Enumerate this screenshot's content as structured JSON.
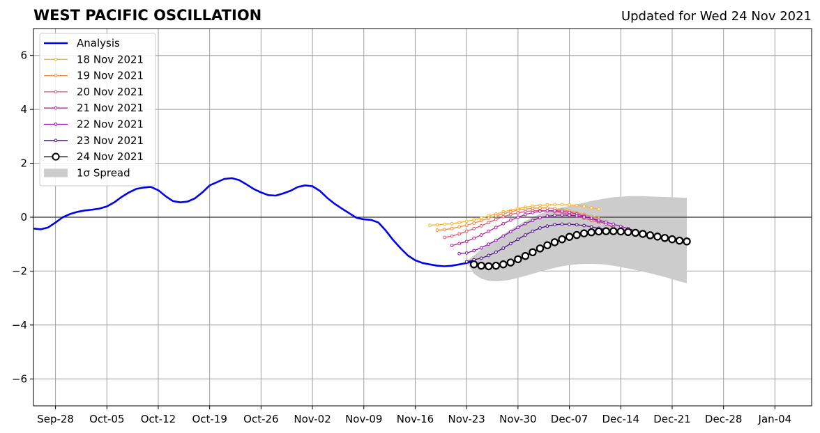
{
  "chart_data": {
    "type": "line",
    "title": "WEST PACIFIC OSCILLATION",
    "subtitle": "Updated for Wed 24 Nov 2021",
    "xlabel": "",
    "ylabel": "",
    "ylim": [
      -7,
      7
    ],
    "yticks": [
      "−6",
      "−4",
      "−2",
      "0",
      "2",
      "4",
      "6"
    ],
    "yticks_values": [
      -6,
      -4,
      -2,
      0,
      2,
      4,
      6
    ],
    "xticks": [
      "Sep-28",
      "Oct-05",
      "Oct-12",
      "Oct-19",
      "Oct-26",
      "Nov-02",
      "Nov-09",
      "Nov-16",
      "Nov-23",
      "Nov-30",
      "Dec-07",
      "Dec-14",
      "Dec-21",
      "Dec-28",
      "Jan-04"
    ],
    "xticks_values": [
      3,
      10,
      17,
      24,
      31,
      38,
      45,
      52,
      59,
      66,
      73,
      80,
      87,
      94,
      101
    ],
    "x_axis_note": "x values are days from Sep-25 2021",
    "xlim": [
      0,
      106
    ],
    "grid": true,
    "legend_position": "top-left",
    "spread_label": "1σ Spread",
    "analysis": {
      "name": "Analysis",
      "color": "#0000ee",
      "x": [
        0,
        1,
        2,
        3,
        4,
        5,
        6,
        7,
        8,
        9,
        10,
        11,
        12,
        13,
        14,
        15,
        16,
        17,
        18,
        19,
        20,
        21,
        22,
        23,
        24,
        25,
        26,
        27,
        28,
        29,
        30,
        31,
        32,
        33,
        34,
        35,
        36,
        37,
        38,
        39,
        40,
        41,
        42,
        43,
        44,
        45,
        46,
        47,
        48,
        49,
        50,
        51,
        52,
        53,
        54,
        55,
        56,
        57,
        58,
        59,
        60
      ],
      "values": [
        -0.42,
        -0.45,
        -0.38,
        -0.2,
        0.0,
        0.12,
        0.2,
        0.25,
        0.28,
        0.32,
        0.4,
        0.55,
        0.75,
        0.92,
        1.05,
        1.1,
        1.12,
        1.0,
        0.78,
        0.6,
        0.55,
        0.58,
        0.7,
        0.92,
        1.18,
        1.3,
        1.42,
        1.45,
        1.38,
        1.22,
        1.05,
        0.92,
        0.82,
        0.8,
        0.88,
        0.98,
        1.12,
        1.18,
        1.15,
        0.98,
        0.72,
        0.5,
        0.32,
        0.15,
        -0.02,
        -0.08,
        -0.1,
        -0.2,
        -0.5,
        -0.85,
        -1.15,
        -1.42,
        -1.6,
        -1.7,
        -1.75,
        -1.8,
        -1.82,
        -1.8,
        -1.75,
        -1.7,
        -1.62
      ]
    },
    "forecasts": [
      {
        "name": "18 Nov 2021",
        "color": "#fcb31f",
        "start": 54,
        "values": [
          -0.3,
          -0.28,
          -0.26,
          -0.24,
          -0.2,
          -0.15,
          -0.1,
          -0.03,
          0.05,
          0.12,
          0.2,
          0.26,
          0.32,
          0.37,
          0.41,
          0.44,
          0.46,
          0.47,
          0.47,
          0.46,
          0.44,
          0.4,
          0.35,
          0.3
        ]
      },
      {
        "name": "19 Nov 2021",
        "color": "#f58a3a",
        "start": 55,
        "values": [
          -0.48,
          -0.46,
          -0.42,
          -0.36,
          -0.3,
          -0.22,
          -0.13,
          -0.04,
          0.05,
          0.13,
          0.2,
          0.26,
          0.3,
          0.33,
          0.34,
          0.34,
          0.32,
          0.28,
          0.23,
          0.17,
          0.1,
          0.03,
          -0.05
        ]
      },
      {
        "name": "20 Nov 2021",
        "color": "#e0526e",
        "start": 56,
        "values": [
          -0.75,
          -0.7,
          -0.62,
          -0.52,
          -0.42,
          -0.32,
          -0.2,
          -0.08,
          0.02,
          0.1,
          0.16,
          0.21,
          0.24,
          0.25,
          0.24,
          0.21,
          0.17,
          0.11,
          0.04,
          -0.04,
          -0.12,
          -0.2
        ]
      },
      {
        "name": "21 Nov 2021",
        "color": "#b81f9e",
        "start": 57,
        "values": [
          -1.05,
          -0.98,
          -0.9,
          -0.78,
          -0.66,
          -0.52,
          -0.38,
          -0.24,
          -0.11,
          0.0,
          0.1,
          0.17,
          0.22,
          0.24,
          0.24,
          0.22,
          0.18,
          0.12,
          0.04,
          -0.05,
          -0.15,
          -0.25,
          -0.38
        ]
      },
      {
        "name": "22 Nov 2021",
        "color": "#8b12ad",
        "start": 58,
        "values": [
          -1.35,
          -1.33,
          -1.24,
          -1.14,
          -1.0,
          -0.86,
          -0.7,
          -0.54,
          -0.38,
          -0.24,
          -0.12,
          -0.02,
          0.04,
          0.07,
          0.08,
          0.07,
          0.05,
          0.01,
          -0.04,
          -0.11,
          -0.18,
          -0.26,
          -0.34,
          -0.42,
          -0.5
        ]
      },
      {
        "name": "23 Nov 2021",
        "color": "#4b0a8c",
        "start": 59,
        "values": [
          -1.65,
          -1.58,
          -1.52,
          -1.42,
          -1.3,
          -1.15,
          -0.98,
          -0.82,
          -0.66,
          -0.52,
          -0.4,
          -0.33,
          -0.28,
          -0.26,
          -0.26,
          -0.28,
          -0.31,
          -0.36,
          -0.41,
          -0.46,
          -0.52,
          -0.57,
          -0.62
        ]
      },
      {
        "name": "24 Nov 2021",
        "color": "#000000",
        "start": 60,
        "values": [
          -1.75,
          -1.8,
          -1.82,
          -1.8,
          -1.75,
          -1.68,
          -1.56,
          -1.44,
          -1.3,
          -1.16,
          -1.04,
          -0.93,
          -0.82,
          -0.73,
          -0.66,
          -0.6,
          -0.56,
          -0.53,
          -0.52,
          -0.52,
          -0.53,
          -0.55,
          -0.58,
          -0.62,
          -0.67,
          -0.72,
          -0.77,
          -0.82,
          -0.87,
          -0.9
        ]
      }
    ],
    "spread": {
      "x": [
        59,
        60,
        61,
        62,
        63,
        64,
        65,
        66,
        67,
        68,
        69,
        70,
        71,
        72,
        73,
        74,
        75,
        76,
        77,
        78,
        79,
        80,
        81,
        82,
        83,
        84,
        85,
        86,
        87,
        88,
        89
      ],
      "upper": [
        -1.62,
        -1.42,
        -1.2,
        -1.0,
        -0.82,
        -0.64,
        -0.46,
        -0.3,
        -0.14,
        0.0,
        0.12,
        0.22,
        0.3,
        0.36,
        0.42,
        0.48,
        0.54,
        0.6,
        0.65,
        0.7,
        0.74,
        0.76,
        0.78,
        0.78,
        0.78,
        0.77,
        0.76,
        0.75,
        0.74,
        0.73,
        0.72
      ],
      "lower": [
        -1.65,
        -2.1,
        -2.28,
        -2.36,
        -2.38,
        -2.36,
        -2.32,
        -2.25,
        -2.18,
        -2.1,
        -2.02,
        -1.95,
        -1.88,
        -1.82,
        -1.78,
        -1.75,
        -1.73,
        -1.73,
        -1.74,
        -1.76,
        -1.8,
        -1.85,
        -1.9,
        -1.96,
        -2.02,
        -2.08,
        -2.15,
        -2.22,
        -2.3,
        -2.38,
        -2.45
      ]
    }
  }
}
